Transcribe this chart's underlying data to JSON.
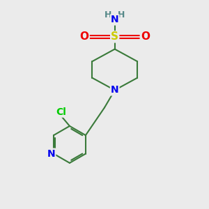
{
  "background_color": "#ebebeb",
  "bond_color": "#3a7a3a",
  "bond_width": 1.5,
  "atom_colors": {
    "N": "#0000ee",
    "O": "#ee0000",
    "S": "#cccc00",
    "Cl": "#00cc00",
    "H": "#558888",
    "C": "#3a7a3a"
  },
  "font_size": 10
}
